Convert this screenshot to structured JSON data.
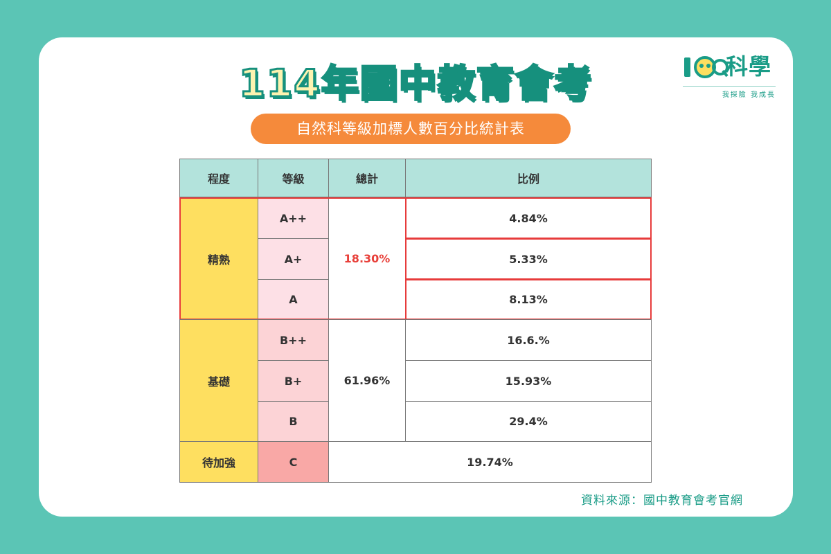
{
  "title": "114年國中教育會考",
  "subtitle": "自然科等級加標人數百分比統計表",
  "logo": {
    "mark": "IQ",
    "name": "科學",
    "slogan": "我探險 我成長"
  },
  "table": {
    "headers": [
      "程度",
      "等級",
      "總計",
      "比例"
    ],
    "groups": [
      {
        "level": "精熟",
        "total": "18.30%",
        "rows": [
          {
            "grade": "A++",
            "ratio": "4.84%"
          },
          {
            "grade": "A+",
            "ratio": "5.33%"
          },
          {
            "grade": "A",
            "ratio": "8.13%"
          }
        ]
      },
      {
        "level": "基礎",
        "total": "61.96%",
        "rows": [
          {
            "grade": "B++",
            "ratio": "16.6.%"
          },
          {
            "grade": "B+",
            "ratio": "15.93%"
          },
          {
            "grade": "B",
            "ratio": "29.4%"
          }
        ]
      },
      {
        "level": "待加強",
        "total": "19.74%",
        "rows": [
          {
            "grade": "C",
            "ratio": ""
          }
        ]
      }
    ]
  },
  "source": "資料來源：國中教育會考官網",
  "colors": {
    "background": "#5bc5b5",
    "header": "#b3e3dc",
    "level": "#fedf60",
    "highlight": "#e73b3b",
    "accent": "#f58a3b"
  }
}
